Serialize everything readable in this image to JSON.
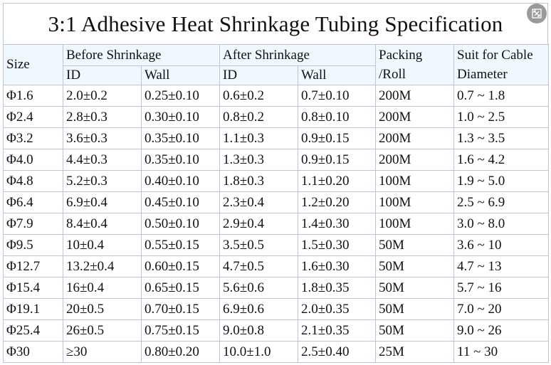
{
  "title": "3:1 Adhesive Heat Shrinkage Tubing Specification",
  "expand_icon": "expand-icon",
  "headers": {
    "size": "Size",
    "before_group": "Before Shrinkage",
    "after_group": "After Shrinkage",
    "id": "ID",
    "wall": "Wall",
    "packing_line1": "Packing",
    "packing_line2": "/Roll",
    "suit_line1": "Suit for Cable",
    "suit_line2": "Diameter"
  },
  "rows": [
    {
      "size": "Φ1.6",
      "before_id": "2.0±0.2",
      "before_wall": "0.25±0.10",
      "after_id": "0.6±0.2",
      "after_wall": "0.7±0.10",
      "packing": "200M",
      "suit": "0.7 ~ 1.8"
    },
    {
      "size": "Φ2.4",
      "before_id": "2.8±0.3",
      "before_wall": "0.30±0.10",
      "after_id": "0.8±0.2",
      "after_wall": "0.8±0.10",
      "packing": "200M",
      "suit": "1.0 ~ 2.5"
    },
    {
      "size": "Φ3.2",
      "before_id": "3.6±0.3",
      "before_wall": "0.35±0.10",
      "after_id": "1.1±0.3",
      "after_wall": "0.9±0.15",
      "packing": "200M",
      "suit": "1.3 ~ 3.5"
    },
    {
      "size": "Φ4.0",
      "before_id": "4.4±0.3",
      "before_wall": "0.35±0.10",
      "after_id": "1.3±0.3",
      "after_wall": "0.9±0.15",
      "packing": "200M",
      "suit": "1.6 ~ 4.2"
    },
    {
      "size": "Φ4.8",
      "before_id": "5.2±0.3",
      "before_wall": "0.40±0.10",
      "after_id": "1.8±0.3",
      "after_wall": "1.1±0.20",
      "packing": "100M",
      "suit": "1.9 ~ 5.0"
    },
    {
      "size": "Φ6.4",
      "before_id": "6.9±0.4",
      "before_wall": "0.45±0.10",
      "after_id": "2.3±0.4",
      "after_wall": "1.2±0.20",
      "packing": "100M",
      "suit": "2.5 ~ 6.9"
    },
    {
      "size": "Φ7.9",
      "before_id": "8.4±0.4",
      "before_wall": "0.50±0.10",
      "after_id": "2.9±0.4",
      "after_wall": "1.4±0.30",
      "packing": "100M",
      "suit": "3.0 ~ 8.0"
    },
    {
      "size": "Φ9.5",
      "before_id": "10±0.4",
      "before_wall": "0.55±0.15",
      "after_id": "3.5±0.5",
      "after_wall": "1.5±0.30",
      "packing": "50M",
      "suit": "3.6 ~ 10"
    },
    {
      "size": "Φ12.7",
      "before_id": "13.2±0.4",
      "before_wall": "0.60±0.15",
      "after_id": "4.7±0.5",
      "after_wall": "1.6±0.30",
      "packing": "50M",
      "suit": "4.7 ~ 13"
    },
    {
      "size": "Φ15.4",
      "before_id": "16±0.4",
      "before_wall": "0.65±0.15",
      "after_id": "5.6±0.6",
      "after_wall": "1.8±0.35",
      "packing": "50M",
      "suit": "5.7 ~ 16"
    },
    {
      "size": "Φ19.1",
      "before_id": "20±0.5",
      "before_wall": "0.70±0.15",
      "after_id": "6.9±0.6",
      "after_wall": "2.0±0.35",
      "packing": "50M",
      "suit": "7.0 ~ 20"
    },
    {
      "size": "Φ25.4",
      "before_id": "26±0.5",
      "before_wall": "0.75±0.15",
      "after_id": "9.0±0.8",
      "after_wall": "2.1±0.35",
      "packing": "50M",
      "suit": "9.0 ~ 26"
    },
    {
      "size": "Φ30",
      "before_id": "≥30",
      "before_wall": "0.80±0.20",
      "after_id": "10.0±1.0",
      "after_wall": "2.5±0.40",
      "packing": "25M",
      "suit": "11 ~ 30"
    }
  ]
}
